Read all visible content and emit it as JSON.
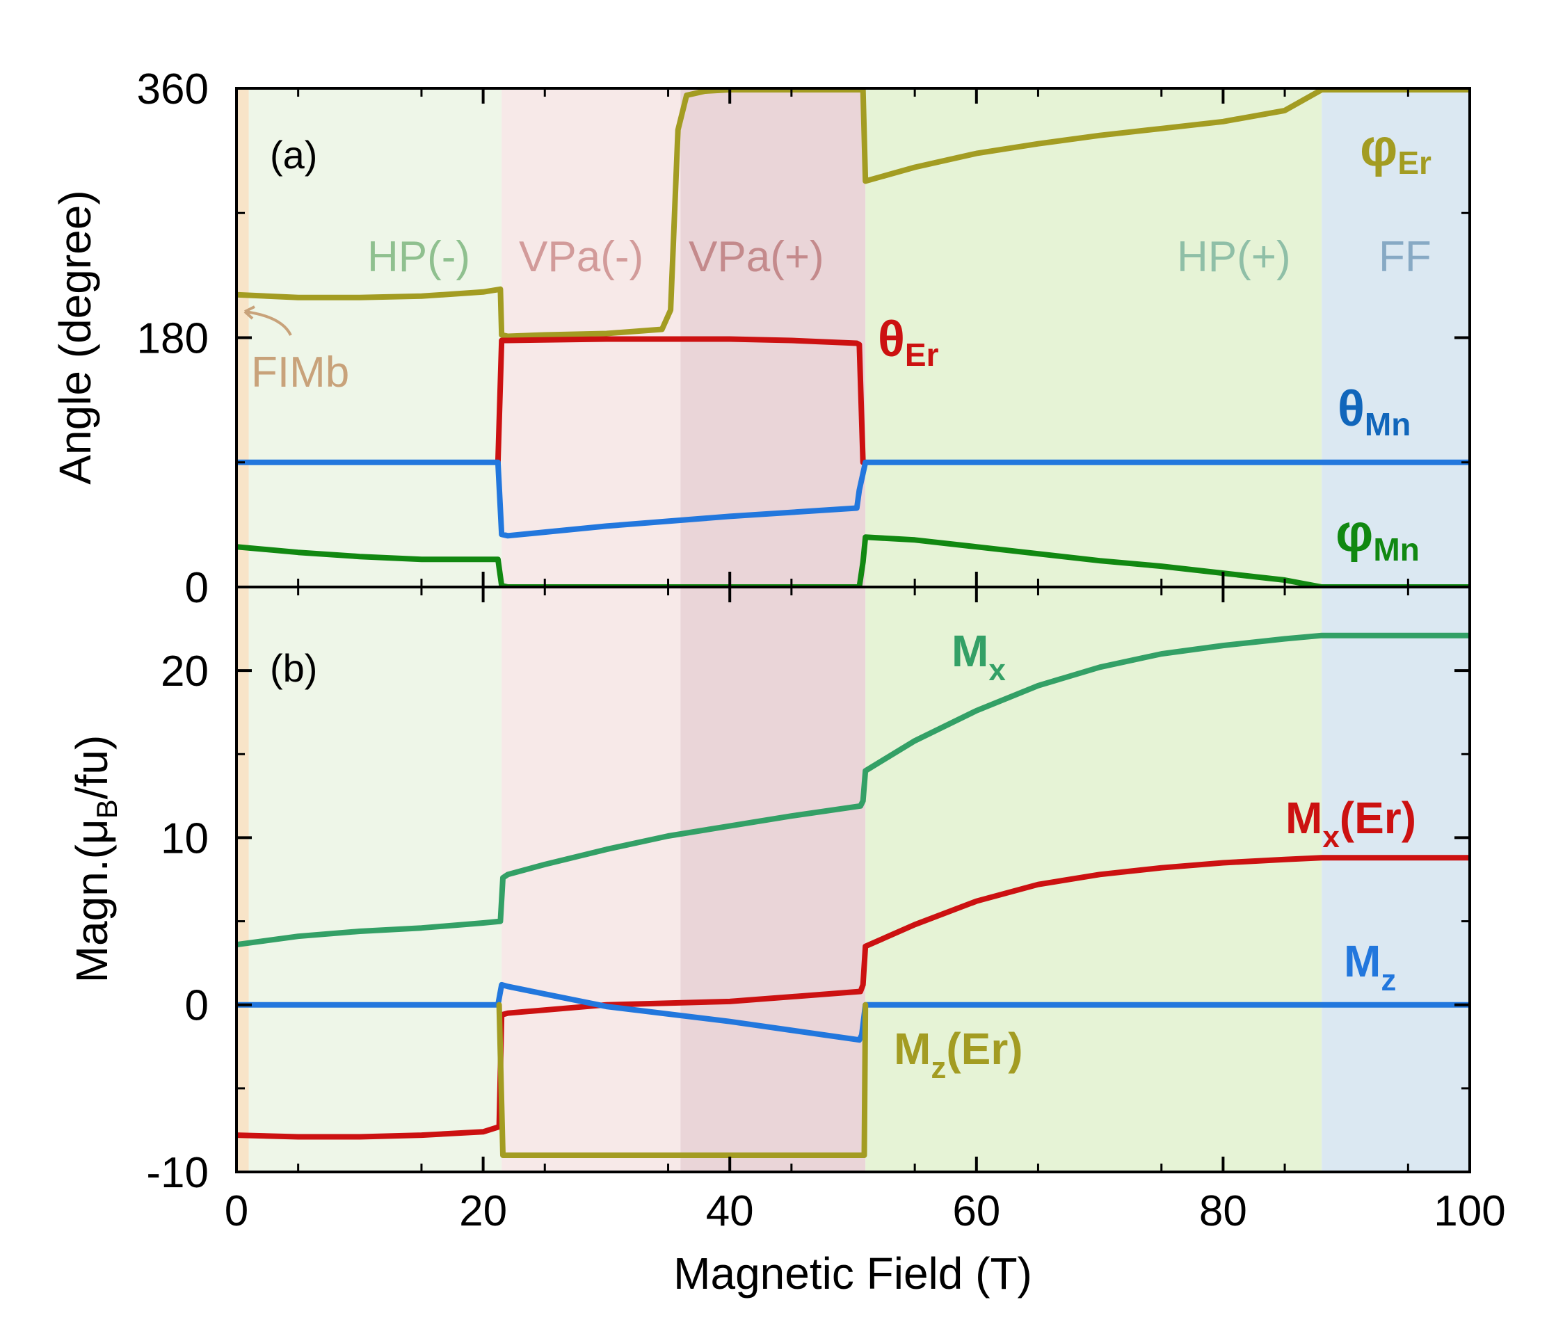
{
  "chart_data": {
    "type": "line",
    "xlabel": "Magnetic Field (T)",
    "xlim": [
      0,
      100
    ],
    "xticks": [
      0,
      20,
      40,
      60,
      80,
      100
    ],
    "x_tick_labels": [
      "0",
      "20",
      "40",
      "60",
      "80",
      "100"
    ],
    "regions": [
      {
        "name": "FIMb",
        "label": "FIMb",
        "from": 0,
        "to": 1,
        "color": "#f8e4c8",
        "label_color": "#c8a27a"
      },
      {
        "name": "HP(-)",
        "label": "HP(-)",
        "from": 1,
        "to": 21.5,
        "color": "#eef6e8",
        "label_color": "#8fc08f"
      },
      {
        "name": "VPa(-)",
        "label": "VPa(-)",
        "from": 21.5,
        "to": 36,
        "color": "#f7e9e8",
        "label_color": "#d29b9a"
      },
      {
        "name": "VPa(+)",
        "label": "VPa(+)",
        "from": 36,
        "to": 51,
        "color": "#ead5d8",
        "label_color": "#c48a8c"
      },
      {
        "name": "HP(+)",
        "label": "HP(+)",
        "from": 51,
        "to": 88,
        "color": "#e6f3d6",
        "label_color": "#8fbfa7"
      },
      {
        "name": "FF",
        "label": "FF",
        "from": 88,
        "to": 100,
        "color": "#dbe8f2",
        "label_color": "#87a9c4"
      }
    ],
    "panels": [
      {
        "id": "a",
        "panel_label": "(a)",
        "ylabel": "Angle (degree)",
        "ylim": [
          0,
          360
        ],
        "yticks": [
          0,
          180,
          360
        ],
        "y_tick_labels": [
          "0",
          "180",
          "360"
        ],
        "series": [
          {
            "name": "φ_Er",
            "label_main": "φ",
            "label_sub": "Er",
            "color": "#a39c22",
            "x": [
              0,
              5,
              10,
              15,
              20,
              21.4,
              21.5,
              22,
              25,
              30,
              34.5,
              35.2,
              35.8,
              36.5,
              38,
              40,
              45,
              50.5,
              50.8,
              51,
              55,
              60,
              65,
              70,
              75,
              80,
              85,
              88,
              90,
              100
            ],
            "y": [
              211,
              209,
              209,
              210,
              213,
              215,
              182,
              181,
              182,
              183,
              186,
              200,
              330,
              355,
              358,
              359,
              359,
              359,
              359,
              293,
              303,
              313,
              320,
              326,
              331,
              336,
              344,
              359,
              359,
              359
            ]
          },
          {
            "name": "θ_Er",
            "label_main": "θ",
            "label_sub": "Er",
            "color": "#cc1111",
            "x": [
              21.2,
              21.5,
              22,
              30,
              40,
              45,
              50.3,
              50.5,
              50.8,
              51
            ],
            "y": [
              90,
              178,
              178,
              179,
              179,
              178,
              176,
              175,
              90,
              90
            ]
          },
          {
            "name": "θ_Mn",
            "label_main": "θ",
            "label_sub": "Mn",
            "color": "#2277dd",
            "x": [
              0,
              21.2,
              21.5,
              22,
              30,
              40,
              50.3,
              50.5,
              51,
              60,
              80,
              100
            ],
            "y": [
              90,
              90,
              38,
              37,
              44,
              51,
              57,
              70,
              90,
              90,
              90,
              90
            ]
          },
          {
            "name": "φ_Mn",
            "label_main": "φ",
            "label_sub": "Mn",
            "color": "#118811",
            "x": [
              0,
              5,
              10,
              15,
              21.2,
              21.5,
              22,
              30,
              40,
              50.5,
              50.8,
              51,
              55,
              60,
              65,
              70,
              75,
              80,
              85,
              88,
              90,
              100
            ],
            "y": [
              29,
              25,
              22,
              20,
              20,
              1,
              0,
              0,
              0,
              0,
              18,
              36,
              34,
              29,
              24,
              19,
              15,
              10,
              5,
              0,
              0,
              0
            ]
          }
        ]
      },
      {
        "id": "b",
        "panel_label": "(b)",
        "ylabel_main": "Magn.(μ",
        "ylabel_sub": "B",
        "ylabel_tail": "/fu)",
        "ylim": [
          -10,
          25
        ],
        "yticks": [
          -10,
          0,
          10,
          20
        ],
        "y_tick_labels": [
          "-10",
          "0",
          "10",
          "20"
        ],
        "series": [
          {
            "name": "M_x",
            "label_main": "M",
            "label_sub": "x",
            "label_tail": "",
            "color": "#33a066",
            "x": [
              0,
              5,
              10,
              15,
              20,
              21.4,
              21.6,
              22,
              25,
              30,
              35,
              40,
              45,
              50.6,
              50.8,
              51,
              55,
              60,
              65,
              70,
              75,
              80,
              85,
              88,
              90,
              95,
              100
            ],
            "y": [
              3.6,
              4.1,
              4.4,
              4.6,
              4.9,
              5.0,
              7.6,
              7.8,
              8.4,
              9.3,
              10.1,
              10.7,
              11.3,
              11.9,
              12.2,
              14,
              15.8,
              17.6,
              19.1,
              20.2,
              21.0,
              21.5,
              21.9,
              22.1,
              22.1,
              22.1,
              22.1
            ]
          },
          {
            "name": "M_x(Er)",
            "label_main": "M",
            "label_sub": "x",
            "label_tail": "(Er)",
            "color": "#cc1111",
            "x": [
              0,
              5,
              10,
              15,
              20,
              21.3,
              21.5,
              22,
              30,
              40,
              50.6,
              50.8,
              51,
              55,
              60,
              65,
              70,
              75,
              80,
              85,
              88,
              90,
              100
            ],
            "y": [
              -7.8,
              -7.9,
              -7.9,
              -7.8,
              -7.6,
              -7.3,
              -0.6,
              -0.5,
              0,
              0.2,
              0.8,
              1.2,
              3.5,
              4.8,
              6.2,
              7.2,
              7.8,
              8.2,
              8.5,
              8.7,
              8.8,
              8.8,
              8.8
            ]
          },
          {
            "name": "M_z",
            "label_main": "M",
            "label_sub": "z",
            "label_tail": "",
            "color": "#2277dd",
            "x": [
              0,
              21.2,
              21.5,
              22,
              30,
              40,
              50.5,
              50.7,
              51,
              60,
              100
            ],
            "y": [
              0,
              0,
              1.2,
              1.1,
              -0.1,
              -1.0,
              -2.1,
              -1.8,
              0,
              0,
              0
            ]
          },
          {
            "name": "M_z(Er)",
            "label_main": "M",
            "label_sub": "z",
            "label_tail": "(Er)",
            "color": "#a39c22",
            "x": [
              21.3,
              21.6,
              22,
              30,
              40,
              50.6,
              50.9,
              51
            ],
            "y": [
              0,
              -9,
              -9,
              -9,
              -9,
              -9,
              -9,
              0
            ]
          }
        ]
      }
    ]
  }
}
